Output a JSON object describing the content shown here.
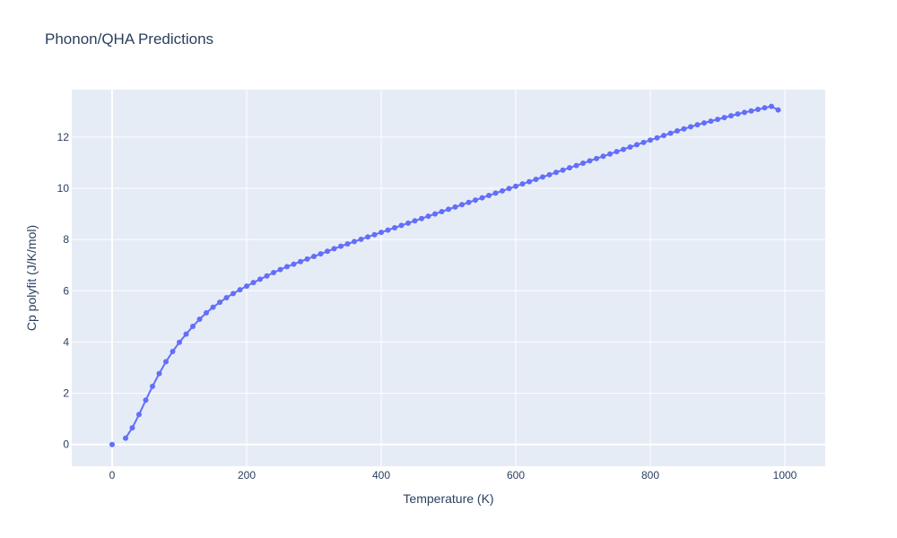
{
  "chart_data": {
    "type": "line",
    "title": "Phonon/QHA Predictions",
    "xlabel": "Temperature (K)",
    "ylabel": "Cp polyfit (J/K/mol)",
    "xlim": [
      -60,
      1060
    ],
    "ylim": [
      -0.85,
      13.85
    ],
    "xticks": [
      0,
      200,
      400,
      600,
      800,
      1000
    ],
    "yticks": [
      0,
      2,
      4,
      6,
      8,
      10,
      12
    ],
    "grid": true,
    "legend": "none",
    "colors": {
      "series": "#636efa",
      "plot_bg": "#e5ecf6",
      "grid": "#ffffff",
      "text": "#2a3f5f"
    },
    "series": [
      {
        "x": [
          0,
          20,
          30,
          40,
          50,
          60,
          70,
          80,
          90,
          100,
          110,
          120,
          130,
          140,
          150,
          160,
          170,
          180,
          190,
          200,
          210,
          220,
          230,
          240,
          250,
          260,
          270,
          280,
          290,
          300,
          310,
          320,
          330,
          340,
          350,
          360,
          370,
          380,
          390,
          400,
          410,
          420,
          430,
          440,
          450,
          460,
          470,
          480,
          490,
          500,
          510,
          520,
          530,
          540,
          550,
          560,
          570,
          580,
          590,
          600,
          610,
          620,
          630,
          640,
          650,
          660,
          670,
          680,
          690,
          700,
          710,
          720,
          730,
          740,
          750,
          760,
          770,
          780,
          790,
          800,
          810,
          820,
          830,
          840,
          850,
          860,
          870,
          880,
          890,
          900,
          910,
          920,
          930,
          940,
          950,
          960,
          970,
          980,
          990
        ],
        "y": [
          0,
          0.25,
          0.65,
          1.17,
          1.73,
          2.27,
          2.77,
          3.23,
          3.63,
          3.99,
          4.31,
          4.61,
          4.89,
          5.14,
          5.36,
          5.55,
          5.73,
          5.89,
          6.04,
          6.18,
          6.32,
          6.45,
          6.58,
          6.71,
          6.83,
          6.94,
          7.04,
          7.14,
          7.24,
          7.34,
          7.44,
          7.54,
          7.64,
          7.74,
          7.83,
          7.92,
          8.01,
          8.1,
          8.19,
          8.28,
          8.37,
          8.46,
          8.55,
          8.64,
          8.73,
          8.82,
          8.91,
          9.0,
          9.09,
          9.18,
          9.27,
          9.36,
          9.45,
          9.54,
          9.63,
          9.72,
          9.81,
          9.9,
          9.99,
          10.08,
          10.17,
          10.26,
          10.35,
          10.44,
          10.53,
          10.62,
          10.71,
          10.8,
          10.89,
          10.98,
          11.07,
          11.16,
          11.25,
          11.34,
          11.43,
          11.52,
          11.61,
          11.7,
          11.79,
          11.88,
          11.97,
          12.06,
          12.15,
          12.24,
          12.32,
          12.4,
          12.48,
          12.55,
          12.62,
          12.69,
          12.76,
          12.83,
          12.9,
          12.96,
          13.02,
          13.08,
          13.14,
          13.2,
          13.06
        ]
      }
    ]
  }
}
